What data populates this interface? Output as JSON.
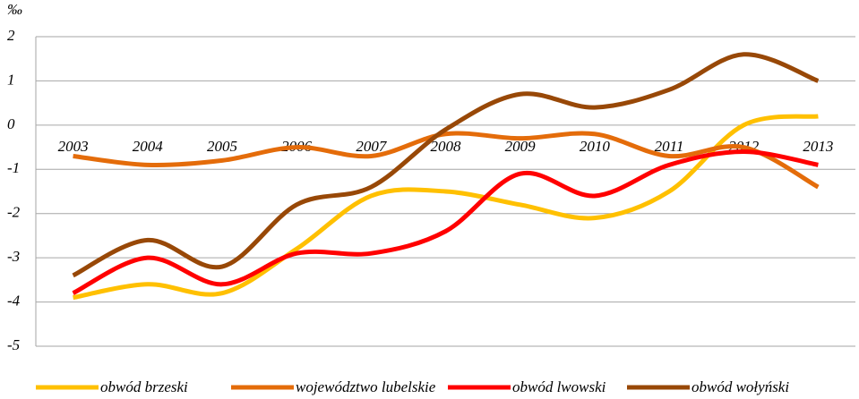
{
  "chart_data": {
    "type": "line",
    "y_label": "‰",
    "categories": [
      "2003",
      "2004",
      "2005",
      "2006",
      "2007",
      "2008",
      "2009",
      "2010",
      "2011",
      "2012",
      "2013"
    ],
    "series": [
      {
        "name": "obwód brzeski",
        "color": "#ffc000",
        "values": [
          -3.9,
          -3.6,
          -3.8,
          -2.8,
          -1.6,
          -1.5,
          -1.8,
          -2.1,
          -1.5,
          0.0,
          0.2
        ]
      },
      {
        "name": "województwo lubelskie",
        "color": "#e46c0a",
        "values": [
          -0.7,
          -0.9,
          -0.8,
          -0.5,
          -0.7,
          -0.2,
          -0.3,
          -0.2,
          -0.7,
          -0.5,
          -1.4
        ]
      },
      {
        "name": "obwód lwowski",
        "color": "#ff0000",
        "values": [
          -3.8,
          -3.0,
          -3.6,
          -2.9,
          -2.9,
          -2.4,
          -1.1,
          -1.6,
          -0.9,
          -0.6,
          -0.9
        ]
      },
      {
        "name": "obwód wołyński",
        "color": "#984807",
        "values": [
          -3.4,
          -2.6,
          -3.2,
          -1.8,
          -1.4,
          -0.1,
          0.7,
          0.4,
          0.8,
          1.6,
          1.0
        ]
      }
    ],
    "ylim": [
      -5,
      2
    ],
    "yticks": [
      -5,
      -4,
      -3,
      -2,
      -1,
      0,
      1,
      2
    ],
    "grid": true,
    "smooth": true,
    "legend": "bottom"
  }
}
